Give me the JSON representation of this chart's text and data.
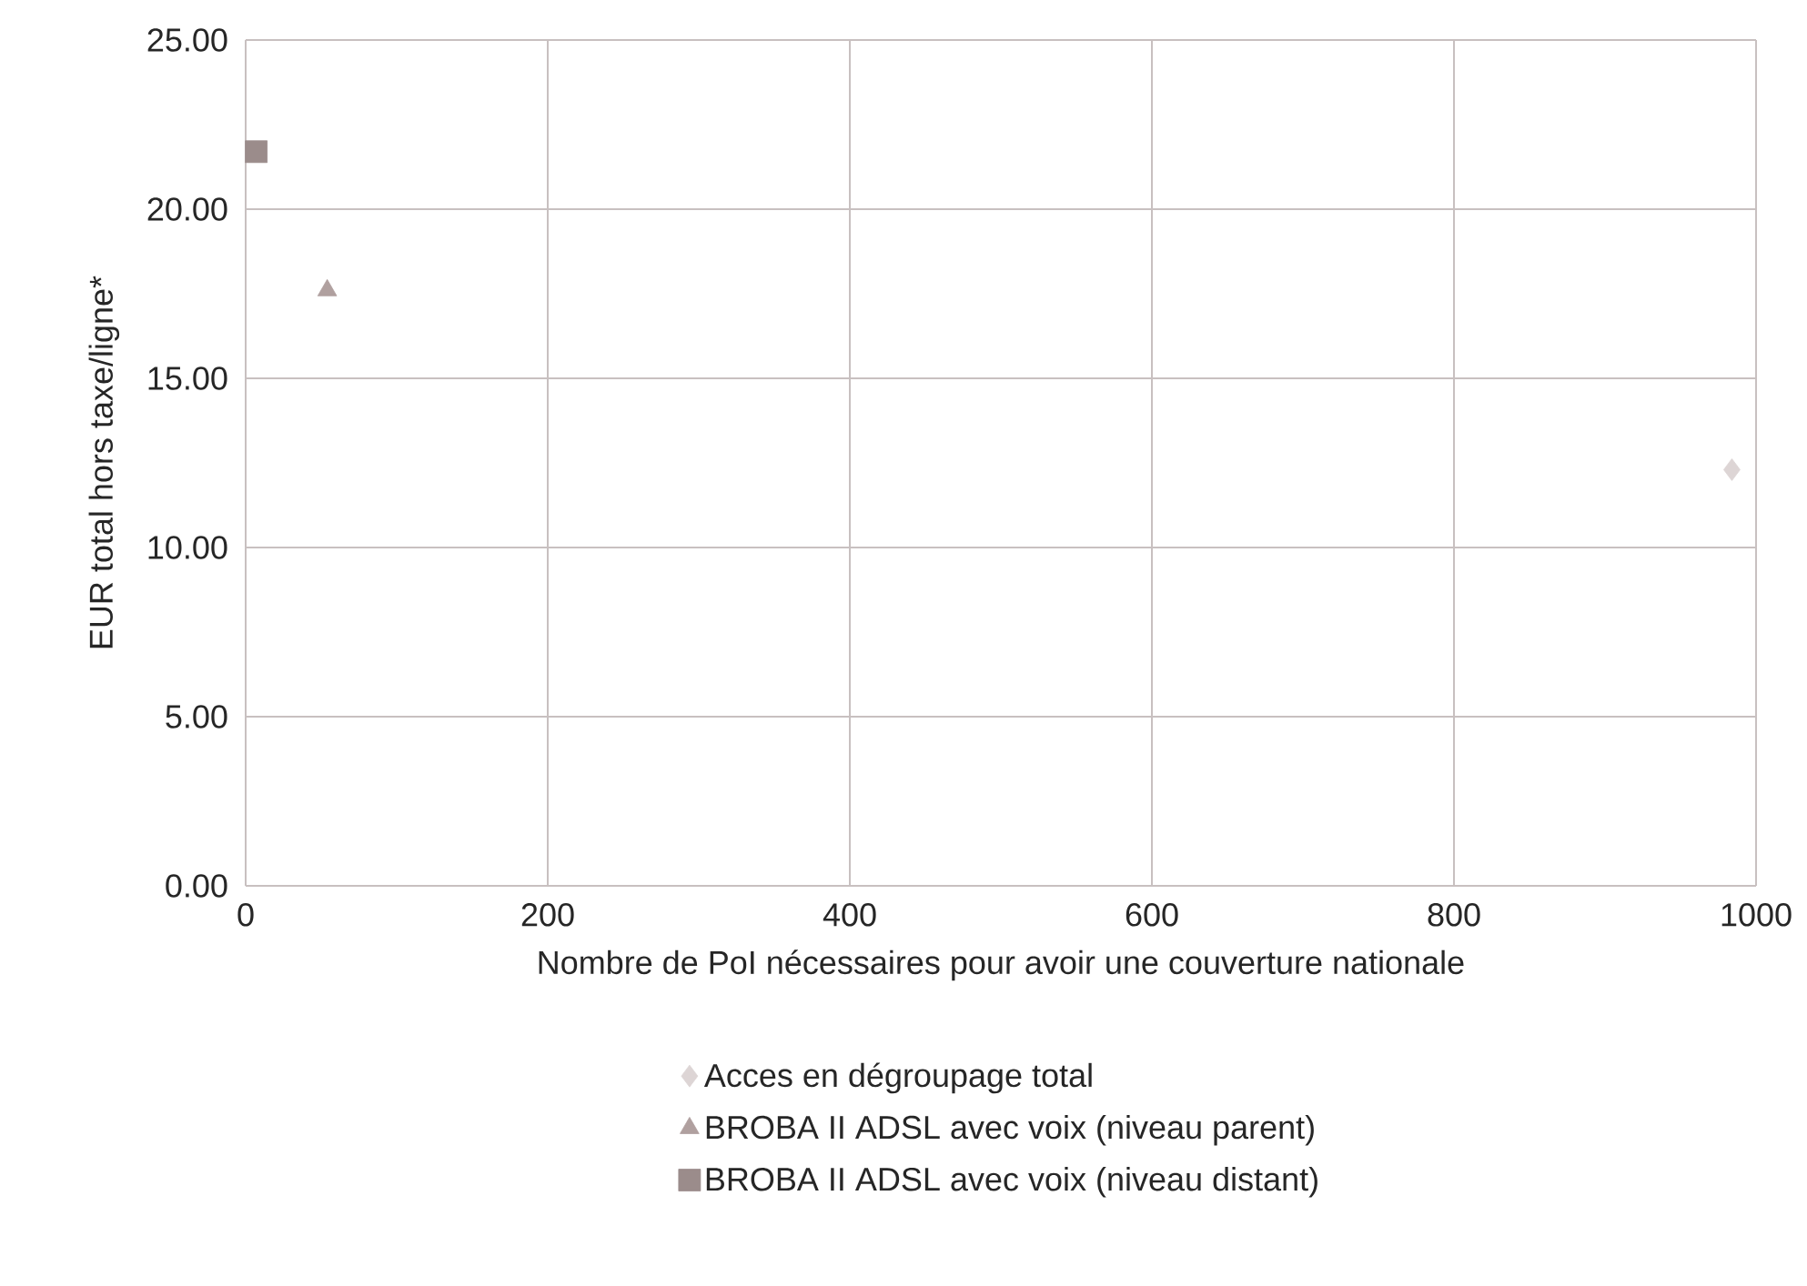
{
  "chart_data": {
    "type": "scatter",
    "xlabel": "Nombre de PoI nécessaires pour avoir une couverture nationale",
    "ylabel": "EUR total hors taxe/ligne*",
    "xlim": [
      0,
      1000
    ],
    "xticks": [
      0,
      200,
      400,
      600,
      800,
      1000
    ],
    "ylim": [
      0,
      25
    ],
    "yticks": [
      {
        "value": 0,
        "label": "0.00"
      },
      {
        "value": 5,
        "label": "5.00"
      },
      {
        "value": 10,
        "label": "10.00"
      },
      {
        "value": 15,
        "label": "15.00"
      },
      {
        "value": 20,
        "label": "20.00"
      },
      {
        "value": 25,
        "label": "25.00"
      }
    ],
    "grid": true,
    "legend": "bottom",
    "series": [
      {
        "name": "Acces en dégroupage total",
        "color": "#ddd5d5",
        "marker": "diamond",
        "x": [
          984
        ],
        "values": [
          12.3
        ]
      },
      {
        "name": "BROBA II ADSL avec voix (niveau parent)",
        "color": "#b0a09f",
        "marker": "triangle",
        "x": [
          54
        ],
        "values": [
          17.6
        ]
      },
      {
        "name": "BROBA II ADSL avec voix (niveau distant)",
        "color": "#9b8c8b",
        "marker": "square",
        "x": [
          7
        ],
        "values": [
          21.7
        ]
      }
    ]
  }
}
